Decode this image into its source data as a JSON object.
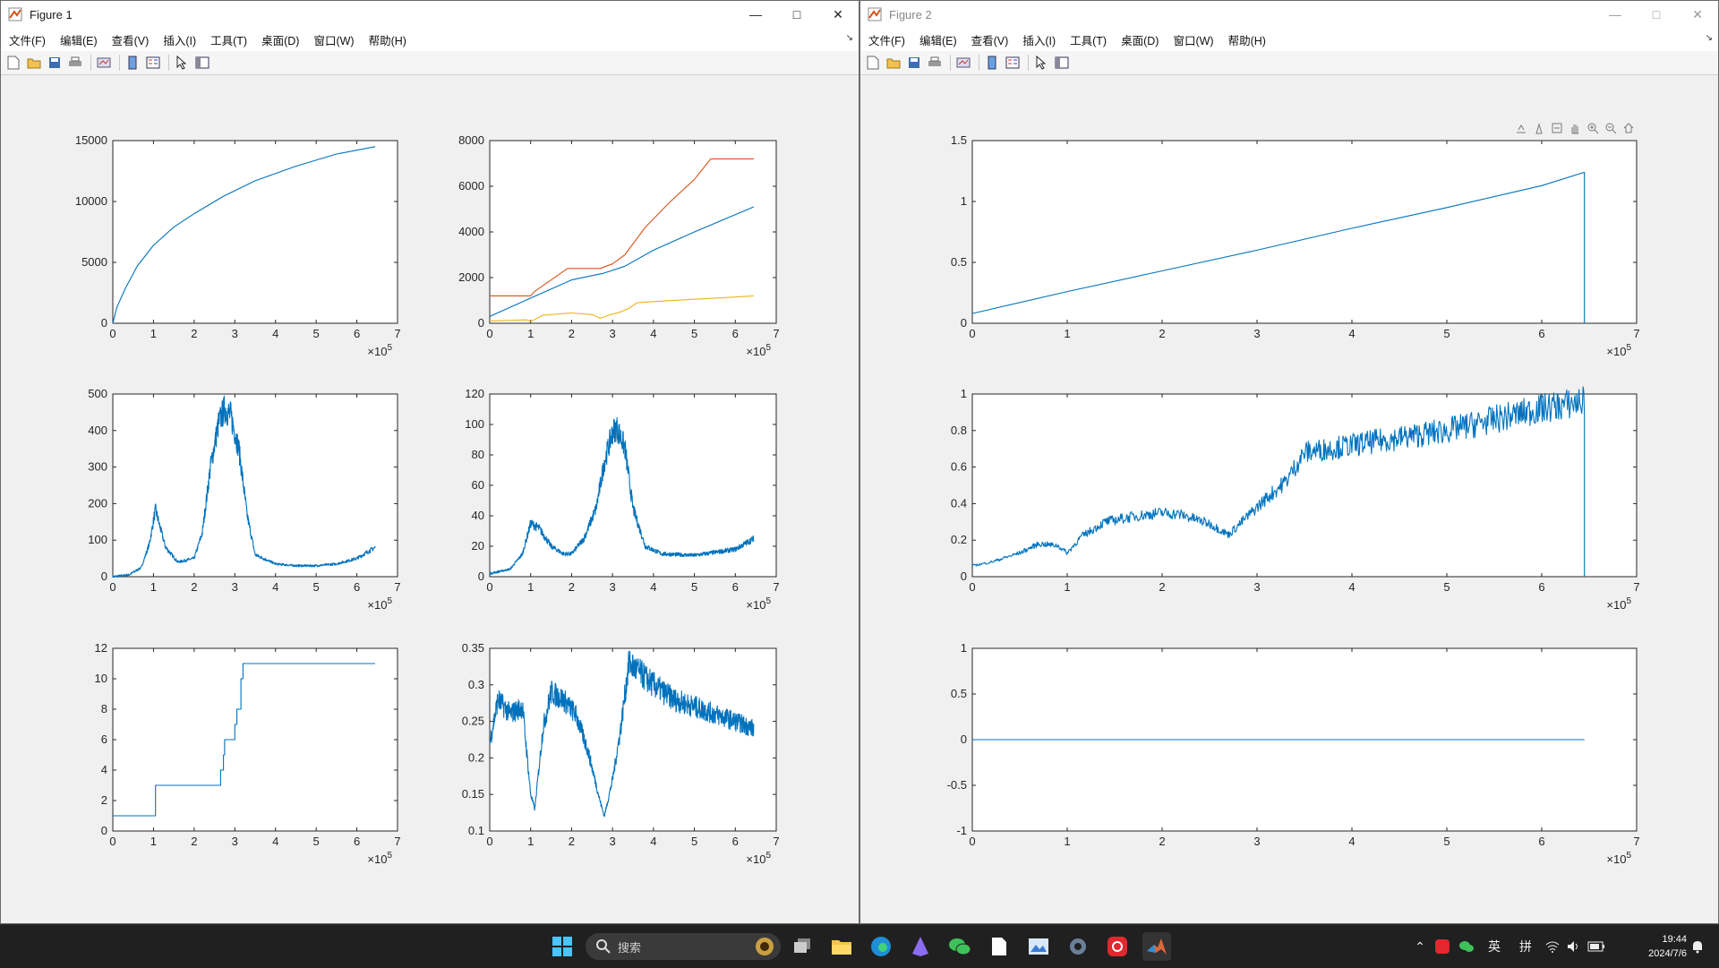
{
  "figure1": {
    "title": "Figure 1",
    "menu": [
      "文件(F)",
      "编辑(E)",
      "查看(V)",
      "插入(I)",
      "工具(T)",
      "桌面(D)",
      "窗口(W)",
      "帮助(H)"
    ],
    "axes": [
      {
        "id": "f1-a1",
        "xticks": [
          "0",
          "1",
          "2",
          "3",
          "4",
          "5",
          "6",
          "7"
        ],
        "yticks": [
          "0",
          "5000",
          "10000",
          "15000"
        ],
        "exponent": "5"
      },
      {
        "id": "f1-a2",
        "xticks": [
          "0",
          "1",
          "2",
          "3",
          "4",
          "5",
          "6",
          "7"
        ],
        "yticks": [
          "0",
          "2000",
          "4000",
          "6000",
          "8000"
        ],
        "exponent": "5"
      },
      {
        "id": "f1-a3",
        "xticks": [
          "0",
          "1",
          "2",
          "3",
          "4",
          "5",
          "6",
          "7"
        ],
        "yticks": [
          "0",
          "100",
          "200",
          "300",
          "400",
          "500"
        ],
        "exponent": "5"
      },
      {
        "id": "f1-a4",
        "xticks": [
          "0",
          "1",
          "2",
          "3",
          "4",
          "5",
          "6",
          "7"
        ],
        "yticks": [
          "0",
          "20",
          "40",
          "60",
          "80",
          "100",
          "120"
        ],
        "exponent": "5"
      },
      {
        "id": "f1-a5",
        "xticks": [
          "0",
          "1",
          "2",
          "3",
          "4",
          "5",
          "6",
          "7"
        ],
        "yticks": [
          "0",
          "2",
          "4",
          "6",
          "8",
          "10",
          "12"
        ],
        "exponent": "5"
      },
      {
        "id": "f1-a6",
        "xticks": [
          "0",
          "1",
          "2",
          "3",
          "4",
          "5",
          "6",
          "7"
        ],
        "yticks": [
          "0.1",
          "0.15",
          "0.2",
          "0.25",
          "0.3",
          "0.35"
        ],
        "exponent": "5"
      }
    ]
  },
  "figure2": {
    "title": "Figure 2",
    "menu": [
      "文件(F)",
      "编辑(E)",
      "查看(V)",
      "插入(I)",
      "工具(T)",
      "桌面(D)",
      "窗口(W)",
      "帮助(H)"
    ],
    "axes": [
      {
        "id": "f2-a1",
        "xticks": [
          "0",
          "1",
          "2",
          "3",
          "4",
          "5",
          "6",
          "7"
        ],
        "yticks": [
          "0",
          "0.5",
          "1",
          "1.5"
        ],
        "exponent": "5"
      },
      {
        "id": "f2-a2",
        "xticks": [
          "0",
          "1",
          "2",
          "3",
          "4",
          "5",
          "6",
          "7"
        ],
        "yticks": [
          "0",
          "0.2",
          "0.4",
          "0.6",
          "0.8",
          "1"
        ],
        "exponent": "5"
      },
      {
        "id": "f2-a3",
        "xticks": [
          "0",
          "1",
          "2",
          "3",
          "4",
          "5",
          "6",
          "7"
        ],
        "yticks": [
          "-1",
          "-0.5",
          "0",
          "0.5",
          "1"
        ],
        "exponent": "5"
      }
    ]
  },
  "taskbar": {
    "search_label": "搜索",
    "ime_lang": "英",
    "ime_mode": "拼",
    "time": "19:44",
    "date": "2024/7/6"
  },
  "colors": {
    "c1": "#0072BD",
    "c2": "#D95319",
    "c3": "#EDB120"
  },
  "chart_data": [
    {
      "id": "f1-a1",
      "type": "line",
      "xlim": [
        0,
        700000
      ],
      "ylim": [
        0,
        15000
      ],
      "series": [
        {
          "x": [
            0,
            10000,
            30000,
            60000,
            100000,
            150000,
            200000,
            270000,
            350000,
            450000,
            550000,
            645000
          ],
          "y": [
            0,
            1300,
            2800,
            4700,
            6400,
            7900,
            9000,
            10400,
            11700,
            12900,
            13900,
            14500
          ]
        }
      ]
    },
    {
      "id": "f1-a2",
      "type": "line",
      "xlim": [
        0,
        700000
      ],
      "ylim": [
        0,
        8000
      ],
      "series": [
        {
          "color": "#0072BD",
          "x": [
            0,
            100000,
            150000,
            200000,
            280000,
            330000,
            400000,
            500000,
            645000
          ],
          "y": [
            300,
            1100,
            1500,
            1900,
            2200,
            2500,
            3200,
            4000,
            5100
          ]
        },
        {
          "color": "#D95319",
          "x": [
            0,
            100000,
            110000,
            190000,
            270000,
            300000,
            330000,
            380000,
            440000,
            500000,
            540000,
            600000,
            645000
          ],
          "y": [
            1200,
            1200,
            1400,
            2400,
            2400,
            2600,
            3000,
            4200,
            5300,
            6300,
            7200,
            7200,
            7200
          ]
        },
        {
          "color": "#EDB120",
          "x": [
            0,
            90000,
            100000,
            130000,
            200000,
            250000,
            270000,
            290000,
            320000,
            340000,
            360000,
            400000,
            500000,
            600000,
            645000
          ],
          "y": [
            100,
            150,
            80,
            350,
            450,
            380,
            220,
            350,
            500,
            650,
            900,
            950,
            1050,
            1150,
            1200
          ]
        }
      ]
    },
    {
      "id": "f1-a3",
      "type": "line",
      "xlim": [
        0,
        700000
      ],
      "ylim": [
        0,
        500
      ],
      "noisy": true,
      "series": [
        {
          "x": [
            0,
            40000,
            70000,
            90000,
            105000,
            115000,
            130000,
            160000,
            200000,
            220000,
            240000,
            260000,
            275000,
            290000,
            310000,
            330000,
            350000,
            400000,
            450000,
            500000,
            550000,
            600000,
            645000
          ],
          "y": [
            0,
            5,
            25,
            90,
            185,
            140,
            80,
            40,
            50,
            120,
            300,
            420,
            460,
            440,
            350,
            170,
            60,
            35,
            30,
            30,
            35,
            50,
            80
          ]
        }
      ]
    },
    {
      "id": "f1-a4",
      "type": "line",
      "xlim": [
        0,
        700000
      ],
      "ylim": [
        0,
        120
      ],
      "noisy": true,
      "series": [
        {
          "x": [
            0,
            50000,
            80000,
            100000,
            120000,
            150000,
            180000,
            200000,
            230000,
            260000,
            280000,
            300000,
            310000,
            330000,
            350000,
            380000,
            420000,
            500000,
            600000,
            645000
          ],
          "y": [
            2,
            5,
            15,
            35,
            32,
            20,
            15,
            15,
            25,
            45,
            75,
            95,
            98,
            85,
            45,
            20,
            15,
            14,
            18,
            25
          ]
        }
      ]
    },
    {
      "id": "f1-a5",
      "type": "step",
      "xlim": [
        0,
        700000
      ],
      "ylim": [
        0,
        12
      ],
      "series": [
        {
          "x": [
            0,
            105000,
            265000,
            272000,
            275000,
            285000,
            300000,
            305000,
            315000,
            320000,
            645000
          ],
          "y": [
            1,
            3,
            4,
            5,
            6,
            6,
            7,
            8,
            10,
            11,
            11
          ]
        }
      ]
    },
    {
      "id": "f1-a6",
      "type": "line",
      "xlim": [
        0,
        700000
      ],
      "ylim": [
        0.1,
        0.35
      ],
      "noisy": true,
      "series": [
        {
          "x": [
            0,
            20000,
            50000,
            80000,
            100000,
            110000,
            130000,
            150000,
            180000,
            210000,
            240000,
            270000,
            280000,
            300000,
            320000,
            340000,
            360000,
            400000,
            450000,
            500000,
            550000,
            600000,
            645000
          ],
          "y": [
            0.22,
            0.28,
            0.26,
            0.27,
            0.15,
            0.13,
            0.24,
            0.29,
            0.28,
            0.26,
            0.21,
            0.14,
            0.12,
            0.17,
            0.24,
            0.33,
            0.32,
            0.3,
            0.28,
            0.27,
            0.26,
            0.25,
            0.24
          ]
        }
      ]
    },
    {
      "id": "f2-a1",
      "type": "line",
      "xlim": [
        0,
        700000
      ],
      "ylim": [
        0,
        1.5
      ],
      "series": [
        {
          "x": [
            0,
            100000,
            200000,
            300000,
            400000,
            500000,
            600000,
            645000,
            645001
          ],
          "y": [
            0.08,
            0.26,
            0.43,
            0.6,
            0.78,
            0.95,
            1.13,
            1.24,
            0
          ]
        }
      ]
    },
    {
      "id": "f2-a2",
      "type": "line",
      "xlim": [
        0,
        700000
      ],
      "ylim": [
        0,
        1
      ],
      "noisy": true,
      "series": [
        {
          "x": [
            0,
            20000,
            50000,
            70000,
            90000,
            100000,
            115000,
            140000,
            170000,
            200000,
            220000,
            250000,
            270000,
            290000,
            310000,
            330000,
            340000,
            350000,
            400000,
            450000,
            500000,
            550000,
            600000,
            645000,
            645001
          ],
          "y": [
            0.06,
            0.08,
            0.13,
            0.18,
            0.17,
            0.13,
            0.22,
            0.3,
            0.33,
            0.35,
            0.34,
            0.29,
            0.23,
            0.33,
            0.43,
            0.52,
            0.6,
            0.68,
            0.72,
            0.76,
            0.8,
            0.86,
            0.92,
            0.96,
            0
          ]
        }
      ]
    },
    {
      "id": "f2-a3",
      "type": "line",
      "xlim": [
        0,
        700000
      ],
      "ylim": [
        -1,
        1
      ],
      "series": [
        {
          "x": [
            0,
            645000
          ],
          "y": [
            0,
            0
          ]
        }
      ]
    }
  ]
}
